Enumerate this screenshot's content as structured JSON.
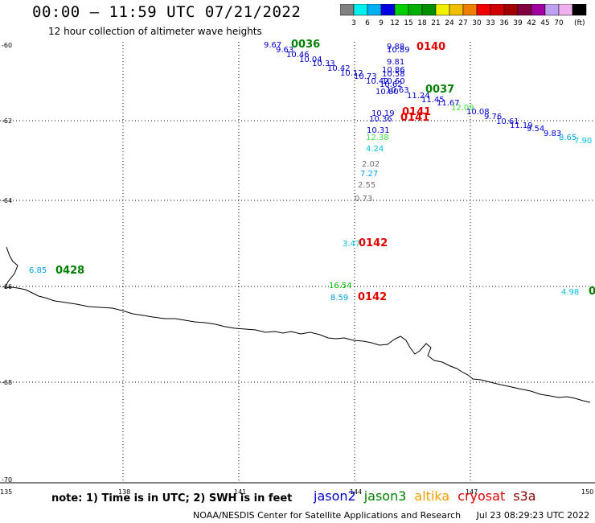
{
  "title": "00:00 – 11:59 UTC 07/21/2022",
  "subtitle": "12 hour collection of altimeter wave heights",
  "colorbar": {
    "colors": [
      "#808080",
      "#00f0f0",
      "#00b0f0",
      "#0000e0",
      "#00d000",
      "#00b000",
      "#009000",
      "#f0f000",
      "#f0c000",
      "#f08000",
      "#f00000",
      "#d00000",
      "#a00000",
      "#800040",
      "#a000a0",
      "#c0a0f0",
      "#f0b0f0",
      "#000000"
    ],
    "labels": [
      "3",
      "6",
      "9",
      "12",
      "15",
      "18",
      "21",
      "24",
      "27",
      "30",
      "33",
      "36",
      "39",
      "42",
      "45",
      "70"
    ],
    "unit": "(ft)"
  },
  "axes": {
    "lon_ticks": [
      "135",
      "138",
      "141",
      "144",
      "147",
      "150"
    ],
    "lat_ticks": [
      "-60",
      "-62",
      "-64",
      "-66",
      "-68",
      "-70"
    ]
  },
  "map_labels": [
    {
      "text": "9.67",
      "color": "#0000cc"
    },
    {
      "text": "0036",
      "color": "#008000",
      "time": true
    },
    {
      "text": "9.63",
      "color": "#0000cc"
    },
    {
      "text": "10.46",
      "color": "#0000cc"
    },
    {
      "text": "10.04",
      "color": "#0000cc"
    },
    {
      "text": "10.33",
      "color": "#0000cc"
    },
    {
      "text": "10.42",
      "color": "#0000cc"
    },
    {
      "text": "10.12",
      "color": "#0000cc"
    },
    {
      "text": "10.73",
      "color": "#0000cc"
    },
    {
      "text": "10.42",
      "color": "#0000cc"
    },
    {
      "text": "9.88",
      "color": "#0000cc"
    },
    {
      "text": "10.89",
      "color": "#0000cc"
    },
    {
      "text": "0140",
      "color": "#e00000",
      "time": true
    },
    {
      "text": "9.81",
      "color": "#0000cc"
    },
    {
      "text": "10.86",
      "color": "#0000cc"
    },
    {
      "text": "10.58",
      "color": "#0000cc"
    },
    {
      "text": "10.60",
      "color": "#0000cc"
    },
    {
      "text": "10.62",
      "color": "#0000cc"
    },
    {
      "text": "10.63",
      "color": "#0000cc"
    },
    {
      "text": "10.80",
      "color": "#0000cc"
    },
    {
      "text": "11.24",
      "color": "#0000cc"
    },
    {
      "text": "0037",
      "color": "#008000",
      "time": true
    },
    {
      "text": "11.45",
      "color": "#0000cc"
    },
    {
      "text": "11.67",
      "color": "#0000cc"
    },
    {
      "text": "12.09",
      "color": "#40e040"
    },
    {
      "text": "10.08",
      "color": "#0000cc"
    },
    {
      "text": "9.76",
      "color": "#0000cc"
    },
    {
      "text": "10.61",
      "color": "#0000cc"
    },
    {
      "text": "11.19",
      "color": "#0000cc"
    },
    {
      "text": "9.54",
      "color": "#0000cc"
    },
    {
      "text": "9.83",
      "color": "#0000cc"
    },
    {
      "text": "8.65",
      "color": "#00a0e0"
    },
    {
      "text": "7.90",
      "color": "#00c0e0"
    },
    {
      "text": "10.19",
      "color": "#0000cc"
    },
    {
      "text": "0141",
      "color": "#e00000",
      "time": true
    },
    {
      "text": "10.36",
      "color": "#0000cc"
    },
    {
      "text": "0141",
      "color": "#e00000",
      "time": true
    },
    {
      "text": "10.31",
      "color": "#0000cc"
    },
    {
      "text": "12.38",
      "color": "#40e040"
    },
    {
      "text": "4.24",
      "color": "#00c0e0"
    },
    {
      "text": "2.02",
      "color": "#707070"
    },
    {
      "text": "7.27",
      "color": "#00a0e0"
    },
    {
      "text": "2.55",
      "color": "#707070"
    },
    {
      "text": "0.73",
      "color": "#707070"
    },
    {
      "text": "3.47",
      "color": "#00c0e0"
    },
    {
      "text": "0142",
      "color": "#e00000",
      "time": true
    },
    {
      "text": "6.85",
      "color": "#00a0e0"
    },
    {
      "text": "0428",
      "color": "#008000",
      "time": true
    },
    {
      "text": "16.54",
      "color": "#00c000"
    },
    {
      "text": "8.59",
      "color": "#00a0e0"
    },
    {
      "text": "0142",
      "color": "#e00000",
      "time": true
    },
    {
      "text": "4.98",
      "color": "#00c0e0"
    },
    {
      "text": "0",
      "color": "#008000",
      "time": true
    }
  ],
  "note": "note: 1) Time is in UTC; 2) SWH is in feet",
  "satellites": [
    {
      "name": "jason2",
      "color": "#0000cc"
    },
    {
      "name": "jason3",
      "color": "#008000"
    },
    {
      "name": "altika",
      "color": "#f0a000"
    },
    {
      "name": "cryosat",
      "color": "#e00000"
    },
    {
      "name": "s3a",
      "color": "#800000"
    }
  ],
  "footer": {
    "agency": "NOAA/NESDIS Center for Satellite Applications and Research",
    "timestamp": "Jul 23 08:29:23 UTC 2022"
  }
}
